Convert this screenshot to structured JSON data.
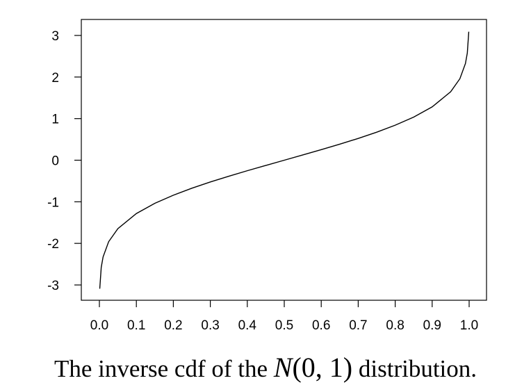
{
  "chart_data": {
    "type": "line",
    "title": "",
    "xlabel": "",
    "ylabel": "",
    "xlim": [
      0.0,
      1.0
    ],
    "ylim": [
      -3.0,
      3.0
    ],
    "x_ticks": [
      "0.0",
      "0.1",
      "0.2",
      "0.3",
      "0.4",
      "0.5",
      "0.6",
      "0.7",
      "0.8",
      "0.9",
      "1.0"
    ],
    "y_ticks": [
      "-3",
      "-2",
      "-1",
      "0",
      "1",
      "2",
      "3"
    ],
    "grid": false,
    "series": [
      {
        "x": [
          0.001,
          0.005,
          0.01,
          0.025,
          0.05,
          0.1,
          0.15,
          0.2,
          0.25,
          0.3,
          0.35,
          0.4,
          0.45,
          0.5,
          0.55,
          0.6,
          0.65,
          0.7,
          0.75,
          0.8,
          0.85,
          0.9,
          0.95,
          0.975,
          0.99,
          0.995,
          0.999
        ],
        "y": [
          -3.09,
          -2.576,
          -2.326,
          -1.96,
          -1.645,
          -1.282,
          -1.036,
          -0.842,
          -0.674,
          -0.524,
          -0.385,
          -0.253,
          -0.126,
          0.0,
          0.126,
          0.253,
          0.385,
          0.524,
          0.674,
          0.842,
          1.036,
          1.282,
          1.645,
          1.96,
          2.326,
          2.576,
          3.09
        ]
      }
    ]
  },
  "caption": {
    "prefix": "The inverse cdf of the ",
    "math_n": "N",
    "math_args": "(0, 1)",
    "suffix": " distribution."
  }
}
